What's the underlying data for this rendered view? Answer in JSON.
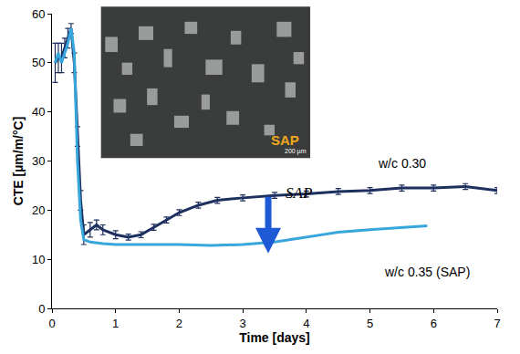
{
  "chart_data": {
    "type": "line",
    "x_label": "Time [days]",
    "y_label": "CTE [µm/m/°C]",
    "xlim": [
      0,
      7
    ],
    "xticks": [
      0,
      1,
      2,
      3,
      4,
      5,
      6,
      7
    ],
    "ylim": [
      0,
      60
    ],
    "yticks": [
      0,
      10,
      20,
      30,
      40,
      50,
      60
    ],
    "grid": false,
    "series": [
      {
        "name": "w/c 0.30",
        "color": "#1c2f5e",
        "x": [
          0.05,
          0.1,
          0.15,
          0.2,
          0.25,
          0.3,
          0.35,
          0.4,
          0.45,
          0.5,
          0.6,
          0.7,
          0.8,
          1.0,
          1.2,
          1.4,
          1.6,
          1.8,
          2.0,
          2.3,
          2.6,
          3.0,
          3.5,
          4.0,
          4.5,
          5.0,
          5.5,
          6.0,
          6.5,
          7.0
        ],
        "values": [
          50,
          51,
          51,
          53,
          55,
          57,
          50,
          35,
          22,
          15,
          16,
          17,
          16,
          15,
          14.5,
          15,
          16.5,
          18,
          19.5,
          21,
          22,
          22.5,
          23,
          23.3,
          23.8,
          24,
          24.5,
          24.5,
          24.8,
          24
        ],
        "error": [
          4,
          3,
          3,
          2,
          2,
          1,
          2,
          2,
          2,
          2,
          1.5,
          1,
          1,
          0.8,
          0.6,
          0.6,
          0.6,
          0.6,
          0.6,
          0.6,
          0.6,
          0.6,
          0.6,
          0.6,
          0.6,
          0.6,
          0.6,
          0.6,
          0.6,
          0.6
        ]
      },
      {
        "name": "w/c 0.35 (SAP)",
        "color": "#36a6dc",
        "x": [
          0.05,
          0.1,
          0.15,
          0.2,
          0.25,
          0.3,
          0.35,
          0.4,
          0.45,
          0.5,
          0.6,
          0.8,
          1.0,
          1.5,
          2.0,
          2.5,
          3.0,
          3.5,
          4.0,
          4.5,
          5.0,
          5.5,
          5.9
        ],
        "values": [
          50,
          52,
          50,
          52,
          54,
          57,
          52,
          30,
          18,
          14,
          13.5,
          13.2,
          13,
          13,
          13,
          12.8,
          13,
          13.5,
          14.5,
          15.5,
          16,
          16.5,
          16.8
        ]
      }
    ],
    "annotations": [
      "SAP"
    ],
    "inset": {
      "label": "SAP",
      "scale_bar": "200 µm"
    }
  }
}
